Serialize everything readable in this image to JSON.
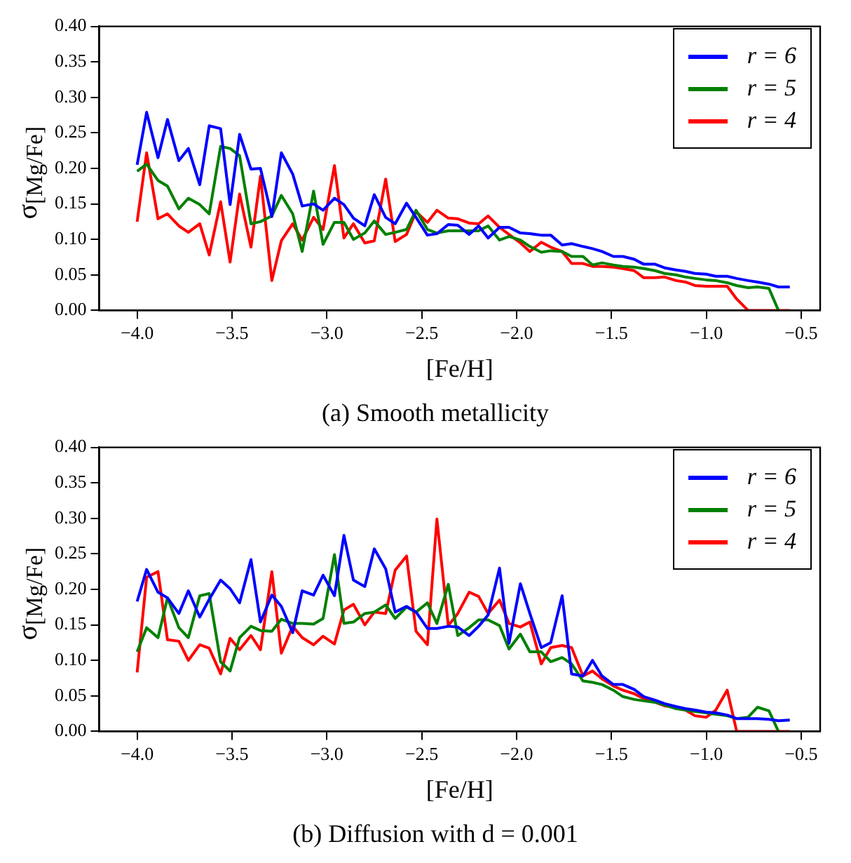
{
  "chart_data": [
    {
      "type": "line",
      "title": "(a) Smooth metallicity",
      "xlabel": "[Fe/H]",
      "ylabel": "σ$_{[Mg/Fe]}$",
      "legend": "top right",
      "grid": false,
      "marker": "none",
      "line_style": "solid",
      "xlim": [
        -4.2,
        -0.4
      ],
      "ylim": [
        0,
        0.4
      ],
      "xticks": [
        {
          "value": -4.0,
          "label": "−4.0"
        },
        {
          "value": -3.5,
          "label": "−3.5"
        },
        {
          "value": -3.0,
          "label": "−3.0"
        },
        {
          "value": -2.5,
          "label": "−2.5"
        },
        {
          "value": -2.0,
          "label": "−2.0"
        },
        {
          "value": -1.5,
          "label": "−1.5"
        },
        {
          "value": -1.0,
          "label": "−1.0"
        },
        {
          "value": -0.5,
          "label": "−0.5"
        }
      ],
      "yticks": [
        {
          "value": 0,
          "label": "0.00"
        },
        0.05,
        {
          "value": 0.1,
          "label": "0.10"
        },
        0.15,
        {
          "value": 0.2,
          "label": "0.20"
        },
        0.25,
        {
          "value": 0.3,
          "label": "0.30"
        },
        0.35,
        {
          "value": 0.4,
          "label": "0.40"
        }
      ],
      "x": [
        -4.0,
        -3.95,
        -3.89,
        -3.84,
        -3.78,
        -3.73,
        -3.67,
        -3.62,
        -3.56,
        -3.51,
        -3.46,
        -3.4,
        -3.35,
        -3.29,
        -3.24,
        -3.18,
        -3.13,
        -3.07,
        -3.02,
        -2.96,
        -2.91,
        -2.86,
        -2.8,
        -2.75,
        -2.69,
        -2.64,
        -2.58,
        -2.53,
        -2.47,
        -2.42,
        -2.36,
        -2.31,
        -2.25,
        -2.2,
        -2.15,
        -2.09,
        -2.04,
        -1.98,
        -1.93,
        -1.87,
        -1.82,
        -1.76,
        -1.71,
        -1.65,
        -1.6,
        -1.55,
        -1.49,
        -1.44,
        -1.38,
        -1.33,
        -1.27,
        -1.22,
        -1.16,
        -1.11,
        -1.06,
        -1.0,
        -0.95,
        -0.89,
        -0.84,
        -0.78,
        -0.73,
        -0.67,
        -0.62,
        -0.56
      ],
      "series": [
        {
          "name": "r = 6",
          "color": "#0000ff",
          "values": [
            0.205,
            0.279,
            0.215,
            0.269,
            0.211,
            0.228,
            0.177,
            0.26,
            0.256,
            0.149,
            0.248,
            0.199,
            0.2,
            0.132,
            0.222,
            0.192,
            0.147,
            0.15,
            0.141,
            0.158,
            0.149,
            0.13,
            0.119,
            0.163,
            0.131,
            0.122,
            0.151,
            0.131,
            0.106,
            0.108,
            0.121,
            0.12,
            0.107,
            0.119,
            0.102,
            0.117,
            0.117,
            0.109,
            0.108,
            0.106,
            0.106,
            0.092,
            0.094,
            0.09,
            0.087,
            0.083,
            0.076,
            0.076,
            0.072,
            0.065,
            0.065,
            0.06,
            0.057,
            0.055,
            0.052,
            0.051,
            0.048,
            0.048,
            0.045,
            0.042,
            0.04,
            0.037,
            0.033,
            0.033
          ]
        },
        {
          "name": "r = 5",
          "color": "#008000",
          "values": [
            0.196,
            0.206,
            0.183,
            0.175,
            0.143,
            0.158,
            0.149,
            0.136,
            0.231,
            0.228,
            0.218,
            0.122,
            0.125,
            0.133,
            0.162,
            0.136,
            0.083,
            0.168,
            0.093,
            0.124,
            0.124,
            0.1,
            0.109,
            0.126,
            0.107,
            0.11,
            0.114,
            0.141,
            0.114,
            0.109,
            0.112,
            0.112,
            0.112,
            0.112,
            0.119,
            0.099,
            0.104,
            0.099,
            0.09,
            0.082,
            0.084,
            0.083,
            0.076,
            0.076,
            0.064,
            0.067,
            0.064,
            0.062,
            0.061,
            0.059,
            0.056,
            0.052,
            0.05,
            0.047,
            0.045,
            0.043,
            0.042,
            0.039,
            0.035,
            0.032,
            0.033,
            0.031,
            0,
            null
          ]
        },
        {
          "name": "r = 4",
          "color": "#ff0000",
          "values": [
            0.125,
            0.222,
            0.129,
            0.136,
            0.119,
            0.11,
            0.122,
            0.078,
            0.153,
            0.068,
            0.164,
            0.089,
            0.189,
            0.042,
            0.098,
            0.122,
            0.099,
            0.131,
            0.114,
            0.204,
            0.102,
            0.122,
            0.095,
            0.098,
            0.185,
            0.097,
            0.107,
            0.139,
            0.124,
            0.141,
            0.13,
            0.129,
            0.123,
            0.122,
            0.133,
            0.117,
            0.107,
            0.095,
            0.083,
            0.096,
            0.089,
            0.083,
            0.066,
            0.066,
            0.062,
            0.062,
            0.061,
            0.059,
            0.056,
            0.046,
            0.046,
            0.047,
            0.042,
            0.04,
            0.035,
            0.034,
            0.034,
            0.034,
            0.016,
            0,
            0,
            0,
            0,
            0
          ]
        }
      ]
    },
    {
      "type": "line",
      "title": "(b) Diffusion with d = 0.001",
      "xlabel": "[Fe/H]",
      "ylabel": "σ$_{[Mg/Fe]}$",
      "legend": "top right",
      "grid": false,
      "marker": "none",
      "line_style": "solid",
      "xlim": [
        -4.2,
        -0.4
      ],
      "ylim": [
        0,
        0.4
      ],
      "xticks": [
        {
          "value": -4.0,
          "label": "−4.0"
        },
        {
          "value": -3.5,
          "label": "−3.5"
        },
        {
          "value": -3.0,
          "label": "−3.0"
        },
        {
          "value": -2.5,
          "label": "−2.5"
        },
        {
          "value": -2.0,
          "label": "−2.0"
        },
        {
          "value": -1.5,
          "label": "−1.5"
        },
        {
          "value": -1.0,
          "label": "−1.0"
        },
        {
          "value": -0.5,
          "label": "−0.5"
        }
      ],
      "yticks": [
        {
          "value": 0,
          "label": "0.00"
        },
        0.05,
        {
          "value": 0.1,
          "label": "0.10"
        },
        0.15,
        {
          "value": 0.2,
          "label": "0.20"
        },
        0.25,
        {
          "value": 0.3,
          "label": "0.30"
        },
        0.35,
        {
          "value": 0.4,
          "label": "0.40"
        }
      ],
      "x": [
        -4.0,
        -3.95,
        -3.89,
        -3.84,
        -3.78,
        -3.73,
        -3.67,
        -3.62,
        -3.56,
        -3.51,
        -3.46,
        -3.4,
        -3.35,
        -3.29,
        -3.24,
        -3.18,
        -3.13,
        -3.07,
        -3.02,
        -2.96,
        -2.91,
        -2.86,
        -2.8,
        -2.75,
        -2.69,
        -2.64,
        -2.58,
        -2.53,
        -2.47,
        -2.42,
        -2.36,
        -2.31,
        -2.25,
        -2.2,
        -2.15,
        -2.09,
        -2.04,
        -1.98,
        -1.93,
        -1.87,
        -1.82,
        -1.76,
        -1.71,
        -1.65,
        -1.6,
        -1.55,
        -1.49,
        -1.44,
        -1.38,
        -1.33,
        -1.27,
        -1.22,
        -1.16,
        -1.11,
        -1.06,
        -1.0,
        -0.95,
        -0.89,
        -0.84,
        -0.78,
        -0.73,
        -0.67,
        -0.62,
        -0.56
      ],
      "series": [
        {
          "name": "r = 6",
          "color": "#0000ff",
          "values": [
            0.183,
            0.228,
            0.196,
            0.188,
            0.166,
            0.198,
            0.161,
            0.186,
            0.213,
            0.201,
            0.181,
            0.242,
            0.154,
            0.192,
            0.176,
            0.139,
            0.198,
            0.192,
            0.22,
            0.191,
            0.276,
            0.213,
            0.204,
            0.257,
            0.229,
            0.168,
            0.176,
            0.168,
            0.145,
            0.145,
            0.148,
            0.147,
            0.135,
            0.148,
            0.164,
            0.23,
            0.124,
            0.208,
            0.166,
            0.118,
            0.125,
            0.191,
            0.081,
            0.078,
            0.1,
            0.078,
            0.066,
            0.066,
            0.059,
            0.049,
            0.044,
            0.039,
            0.035,
            0.032,
            0.03,
            0.027,
            0.026,
            0.023,
            0.018,
            0.018,
            0.018,
            0.017,
            0.015,
            0.016
          ]
        },
        {
          "name": "r = 5",
          "color": "#008000",
          "values": [
            0.112,
            0.146,
            0.132,
            0.188,
            0.146,
            0.132,
            0.191,
            0.194,
            0.098,
            0.085,
            0.132,
            0.148,
            0.142,
            0.141,
            0.158,
            0.152,
            0.152,
            0.151,
            0.159,
            0.249,
            0.152,
            0.154,
            0.166,
            0.168,
            0.178,
            0.159,
            0.175,
            0.168,
            0.181,
            0.152,
            0.207,
            0.135,
            0.146,
            0.157,
            0.157,
            0.149,
            0.116,
            0.137,
            0.112,
            0.112,
            0.098,
            0.104,
            0.095,
            0.071,
            0.069,
            0.066,
            0.058,
            0.049,
            0.045,
            0.043,
            0.041,
            0.037,
            0.032,
            0.03,
            0.028,
            0.026,
            0.024,
            0.022,
            0.018,
            0.02,
            0.034,
            0.029,
            0,
            null
          ]
        },
        {
          "name": "r = 4",
          "color": "#ff0000",
          "values": [
            0.083,
            0.217,
            0.225,
            0.129,
            0.127,
            0.1,
            0.122,
            0.117,
            0.081,
            0.131,
            0.115,
            0.135,
            0.115,
            0.225,
            0.11,
            0.148,
            0.132,
            0.122,
            0.134,
            0.123,
            0.171,
            0.179,
            0.15,
            0.168,
            0.166,
            0.227,
            0.247,
            0.141,
            0.122,
            0.299,
            0.149,
            0.166,
            0.196,
            0.19,
            0.166,
            0.185,
            0.152,
            0.147,
            0.154,
            0.095,
            0.118,
            0.121,
            0.118,
            0.078,
            0.085,
            0.074,
            0.064,
            0.058,
            0.053,
            0.046,
            0.041,
            0.036,
            0.034,
            0.03,
            0.022,
            0.02,
            0.03,
            0.058,
            0,
            0,
            0,
            0,
            0,
            0
          ]
        }
      ]
    }
  ]
}
